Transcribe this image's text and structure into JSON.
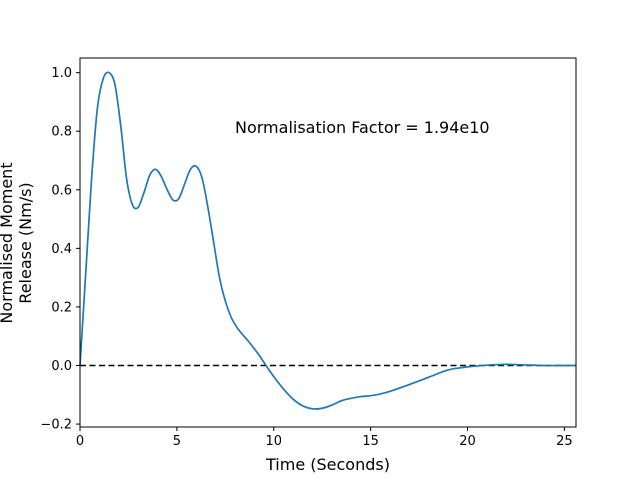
{
  "chart_data": {
    "type": "line",
    "title": "",
    "xlabel": "Time (Seconds)",
    "ylabel_lines": [
      "Normalised Moment",
      "Release (Nm/s)"
    ],
    "xlim": [
      0,
      25.6
    ],
    "ylim": [
      -0.21,
      1.05
    ],
    "xticks": [
      0,
      5,
      10,
      15,
      20,
      25
    ],
    "yticks": [
      -0.2,
      0.0,
      0.2,
      0.4,
      0.6,
      0.8,
      1.0
    ],
    "ytick_labels": [
      "−0.2",
      "0.0",
      "0.2",
      "0.4",
      "0.6",
      "0.8",
      "1.0"
    ],
    "grid": false,
    "annotation": "Normalisation Factor = 1.94e10",
    "reference_line": {
      "y": 0,
      "style": "dashed",
      "color": "#000000"
    },
    "series": [
      {
        "color": "#1f77b4",
        "x": [
          0,
          0.3,
          0.6,
          0.9,
          1.2,
          1.5,
          1.8,
          2.1,
          2.4,
          2.7,
          3.0,
          3.3,
          3.6,
          3.9,
          4.2,
          4.5,
          4.8,
          5.1,
          5.4,
          5.7,
          6.0,
          6.3,
          6.6,
          6.9,
          7.2,
          7.5,
          7.8,
          8.1,
          8.4,
          8.7,
          9.0,
          9.3,
          9.6,
          10.0,
          10.5,
          11.0,
          11.5,
          12.0,
          12.5,
          13.0,
          13.5,
          14.0,
          14.5,
          15.0,
          15.5,
          16.0,
          17.0,
          18.0,
          19.0,
          20.0,
          21.0,
          22.0,
          23.0,
          24.0,
          25.0,
          25.6
        ],
        "y": [
          0.0,
          0.32,
          0.64,
          0.88,
          0.98,
          1.0,
          0.96,
          0.82,
          0.64,
          0.55,
          0.54,
          0.59,
          0.65,
          0.67,
          0.645,
          0.6,
          0.565,
          0.57,
          0.62,
          0.67,
          0.68,
          0.64,
          0.54,
          0.42,
          0.3,
          0.22,
          0.165,
          0.13,
          0.105,
          0.082,
          0.057,
          0.03,
          0.0,
          -0.038,
          -0.08,
          -0.115,
          -0.138,
          -0.148,
          -0.146,
          -0.135,
          -0.12,
          -0.112,
          -0.106,
          -0.103,
          -0.097,
          -0.088,
          -0.065,
          -0.04,
          -0.015,
          -0.005,
          0.001,
          0.004,
          0.002,
          0.0,
          0.0,
          0.0
        ]
      }
    ]
  }
}
